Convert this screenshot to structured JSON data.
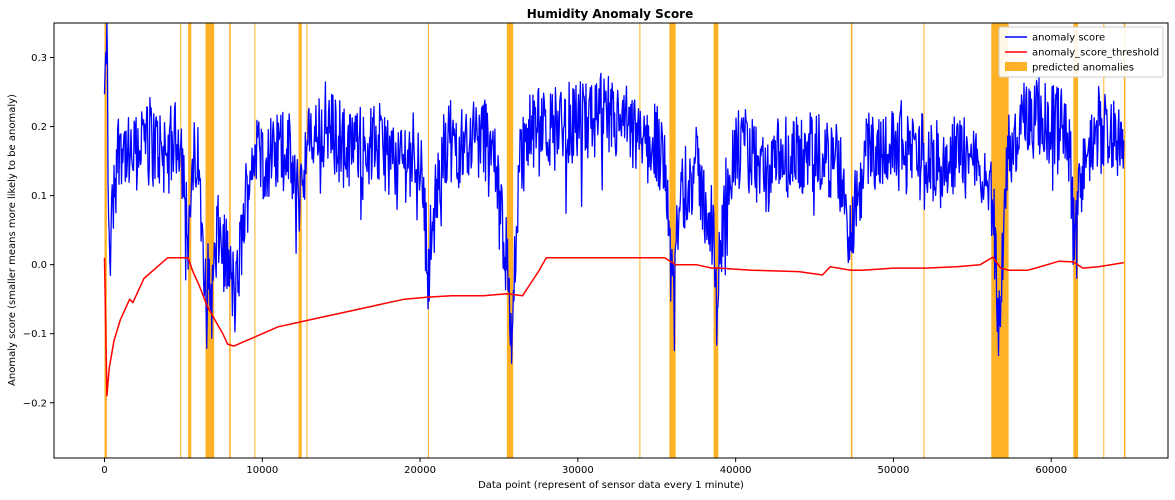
{
  "chart_data": {
    "type": "line",
    "title": "Humidity Anomaly Score",
    "xlabel": "Data point (represent of sensor data every 1 minute)",
    "ylabel": "Anomaly score (smaller means more likely to be anomaly)",
    "xlim": [
      -3200,
      67400
    ],
    "ylim": [
      -0.28,
      0.35
    ],
    "x_ticks": [
      0,
      10000,
      20000,
      30000,
      40000,
      50000,
      60000
    ],
    "y_ticks": [
      -0.2,
      -0.1,
      0.0,
      0.1,
      0.2,
      0.3
    ],
    "x_tick_labels": [
      "0",
      "10000",
      "20000",
      "30000",
      "40000",
      "50000",
      "60000"
    ],
    "y_tick_labels": [
      "−0.2",
      "−0.1",
      "0.0",
      "0.1",
      "0.2",
      "0.3"
    ],
    "grid": false,
    "legend_position": "top-right",
    "series": [
      {
        "name": "anomaly score",
        "color": "#0000ff",
        "style": "noisy-line",
        "x": [
          0,
          150,
          300,
          600,
          1000,
          1600,
          2200,
          3000,
          4000,
          4800,
          5300,
          5800,
          6400,
          6800,
          7200,
          7800,
          8300,
          9000,
          9500,
          10500,
          11500,
          12300,
          13000,
          14000,
          15500,
          17000,
          18500,
          20000,
          20500,
          21500,
          23000,
          24500,
          25500,
          25800,
          26300,
          27000,
          28500,
          30000,
          31500,
          33000,
          34000,
          35500,
          36000,
          36500,
          37500,
          38500,
          38800,
          39500,
          40500,
          42000,
          43500,
          45000,
          46500,
          47300,
          47800,
          49000,
          50500,
          52000,
          53500,
          55000,
          56300,
          56700,
          57200,
          58000,
          59500,
          61000,
          61500,
          62000,
          63000,
          64000,
          64600
        ],
        "y": [
          0.23,
          0.34,
          0.0,
          0.12,
          0.19,
          0.14,
          0.18,
          0.18,
          0.16,
          0.19,
          0.05,
          0.17,
          0.0,
          -0.05,
          0.05,
          0.0,
          -0.05,
          0.1,
          0.17,
          0.15,
          0.17,
          0.1,
          0.18,
          0.2,
          0.17,
          0.18,
          0.15,
          0.16,
          0.0,
          0.17,
          0.18,
          0.19,
          0.0,
          -0.1,
          0.15,
          0.19,
          0.2,
          0.21,
          0.21,
          0.2,
          0.18,
          0.17,
          -0.05,
          0.1,
          0.14,
          0.05,
          -0.05,
          0.15,
          0.17,
          0.13,
          0.16,
          0.15,
          0.15,
          0.03,
          0.15,
          0.17,
          0.17,
          0.16,
          0.15,
          0.17,
          0.1,
          -0.1,
          0.15,
          0.2,
          0.21,
          0.21,
          0.03,
          0.15,
          0.2,
          0.19,
          0.18
        ]
      },
      {
        "name": "anomaly_score_threshold",
        "color": "#ff0000",
        "style": "line",
        "x": [
          0,
          150,
          300,
          600,
          1000,
          1400,
          1600,
          1800,
          2500,
          3500,
          4000,
          4800,
          5300,
          5600,
          6000,
          6500,
          7000,
          7500,
          7800,
          8200,
          9000,
          10000,
          11000,
          12000,
          13000,
          15000,
          17000,
          19000,
          20500,
          22000,
          24000,
          25500,
          26500,
          27500,
          28000,
          30000,
          32000,
          34000,
          35500,
          36200,
          37500,
          38500,
          39000,
          41000,
          44000,
          45500,
          46000,
          47300,
          48000,
          50000,
          52000,
          54000,
          55500,
          56300,
          56800,
          57300,
          58500,
          59000,
          60500,
          61400,
          62000,
          63000,
          64600
        ],
        "y": [
          0.01,
          -0.19,
          -0.15,
          -0.11,
          -0.08,
          -0.06,
          -0.05,
          -0.055,
          -0.02,
          0.0,
          0.01,
          0.01,
          0.01,
          -0.01,
          -0.03,
          -0.06,
          -0.08,
          -0.1,
          -0.115,
          -0.118,
          -0.11,
          -0.1,
          -0.09,
          -0.085,
          -0.08,
          -0.07,
          -0.06,
          -0.05,
          -0.047,
          -0.045,
          -0.045,
          -0.042,
          -0.045,
          -0.01,
          0.01,
          0.01,
          0.01,
          0.01,
          0.01,
          0.0,
          0.0,
          -0.005,
          -0.005,
          -0.008,
          -0.01,
          -0.015,
          -0.003,
          -0.008,
          -0.008,
          -0.005,
          -0.005,
          -0.003,
          0.0,
          0.011,
          -0.005,
          -0.008,
          -0.008,
          -0.005,
          0.005,
          0.004,
          -0.005,
          -0.003,
          0.003
        ]
      }
    ],
    "anomalies": {
      "name": "predicted anomalies",
      "color": "#ffa500",
      "regions": [
        [
          0,
          150
        ],
        [
          4800,
          4860
        ],
        [
          5300,
          5500
        ],
        [
          6400,
          6950
        ],
        [
          7900,
          8000
        ],
        [
          9500,
          9550
        ],
        [
          12300,
          12500
        ],
        [
          12800,
          12850
        ],
        [
          20500,
          20550
        ],
        [
          25500,
          25900
        ],
        [
          33900,
          33950
        ],
        [
          35800,
          36200
        ],
        [
          38600,
          38900
        ],
        [
          47300,
          47400
        ],
        [
          51900,
          51950
        ],
        [
          56200,
          57300
        ],
        [
          61400,
          61700
        ],
        [
          63300,
          63350
        ],
        [
          64600,
          64700
        ]
      ]
    }
  }
}
